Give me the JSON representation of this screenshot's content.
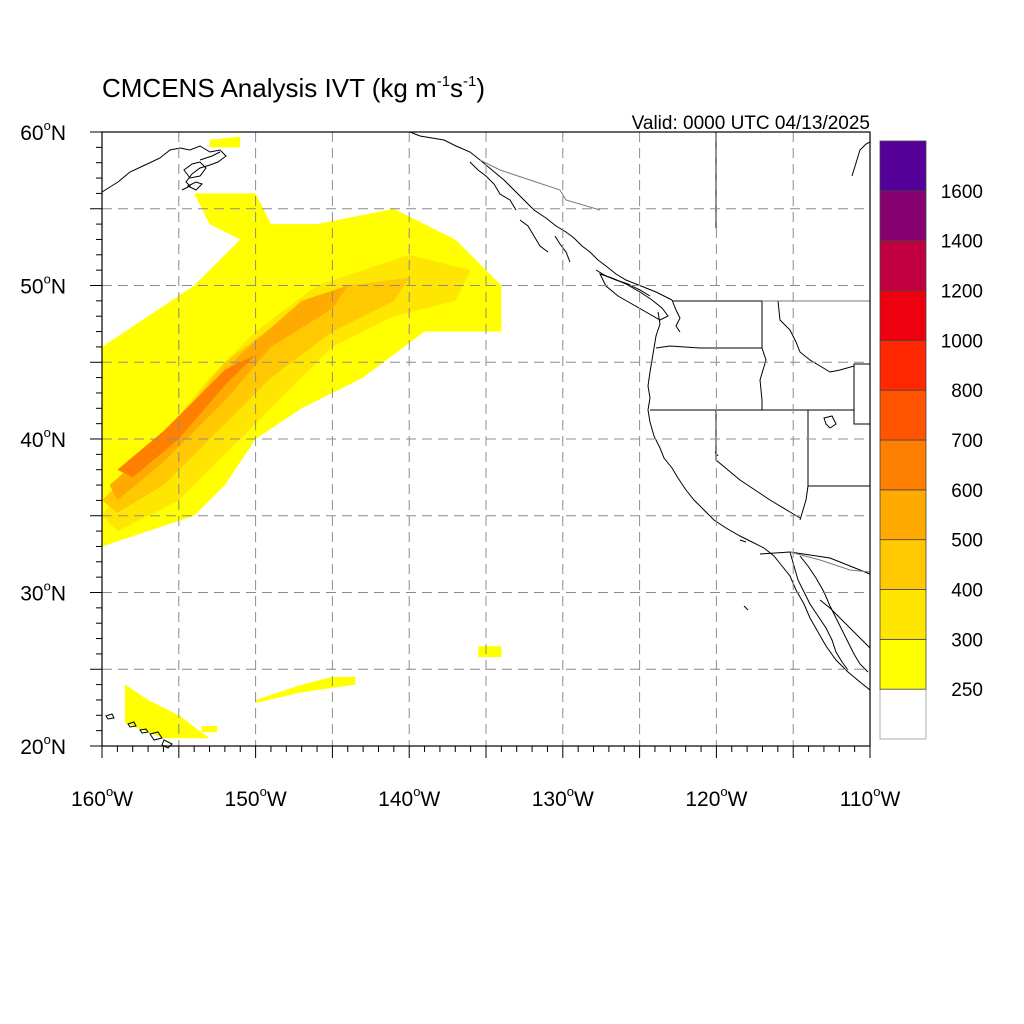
{
  "title": {
    "main": "CMCENS Analysis IVT (kg m",
    "sup1": "-1",
    "mid": "s",
    "sup2": "-1",
    "end": ")"
  },
  "valid_label": "Valid: 0000 UTC 04/13/2025",
  "map": {
    "projection": "cylindrical equidistant",
    "lon_range": [
      -160,
      -110
    ],
    "lat_range": [
      20,
      60
    ],
    "grid": "dashed every 5 degrees",
    "lat_ticks": [
      {
        "value": 60,
        "num": "60",
        "deg": "o",
        "hem": "N"
      },
      {
        "value": 50,
        "num": "50",
        "deg": "o",
        "hem": "N"
      },
      {
        "value": 40,
        "num": "40",
        "deg": "o",
        "hem": "N"
      },
      {
        "value": 30,
        "num": "30",
        "deg": "o",
        "hem": "N"
      },
      {
        "value": 20,
        "num": "20",
        "deg": "o",
        "hem": "N"
      }
    ],
    "lon_ticks": [
      {
        "value": -160,
        "num": "160",
        "deg": "o",
        "hem": "W"
      },
      {
        "value": -150,
        "num": "150",
        "deg": "o",
        "hem": "W"
      },
      {
        "value": -140,
        "num": "140",
        "deg": "o",
        "hem": "W"
      },
      {
        "value": -130,
        "num": "130",
        "deg": "o",
        "hem": "W"
      },
      {
        "value": -120,
        "num": "120",
        "deg": "o",
        "hem": "W"
      },
      {
        "value": -110,
        "num": "110",
        "deg": "o",
        "hem": "W"
      }
    ]
  },
  "colorbar": {
    "colors": [
      "#ffffff",
      "#ffff00",
      "#ffe600",
      "#ffc800",
      "#ffaa00",
      "#ff8000",
      "#ff5500",
      "#ff2800",
      "#ee0010",
      "#c00040",
      "#870070",
      "#550099"
    ],
    "labels": [
      "250",
      "300",
      "400",
      "500",
      "600",
      "700",
      "800",
      "1000",
      "1200",
      "1400",
      "1600"
    ]
  },
  "ivt_regions": [
    {
      "level": 1,
      "points": [
        [
          -160,
          39
        ],
        [
          -160,
          46
        ],
        [
          -157,
          48
        ],
        [
          -154,
          50
        ],
        [
          -152,
          52
        ],
        [
          -150,
          54
        ],
        [
          -146,
          54
        ],
        [
          -141,
          55
        ],
        [
          -137,
          53
        ],
        [
          -134,
          50
        ],
        [
          -134,
          47
        ],
        [
          -139,
          47
        ],
        [
          -143,
          44
        ],
        [
          -147,
          42
        ],
        [
          -150,
          40
        ],
        [
          -152,
          37
        ],
        [
          -154,
          35
        ],
        [
          -157,
          34
        ],
        [
          -160,
          33
        ]
      ]
    },
    {
      "level": 1,
      "points": [
        [
          -154,
          56
        ],
        [
          -150,
          56
        ],
        [
          -149,
          54
        ],
        [
          -151,
          53
        ],
        [
          -153,
          54
        ]
      ]
    },
    {
      "level": 1,
      "points": [
        [
          -153,
          59.5
        ],
        [
          -151,
          59.7
        ],
        [
          -151,
          59
        ],
        [
          -153,
          59
        ]
      ]
    },
    {
      "level": 1,
      "points": [
        [
          -158.5,
          24
        ],
        [
          -157,
          23
        ],
        [
          -155,
          22
        ],
        [
          -153,
          20.5
        ],
        [
          -156,
          20.5
        ],
        [
          -158.5,
          21.5
        ]
      ]
    },
    {
      "level": 1,
      "points": [
        [
          -153.5,
          21.3
        ],
        [
          -152.5,
          21.3
        ],
        [
          -152.5,
          20.9
        ],
        [
          -153.5,
          20.9
        ]
      ]
    },
    {
      "level": 1,
      "points": [
        [
          -150,
          23
        ],
        [
          -147,
          24
        ],
        [
          -145,
          24.5
        ],
        [
          -143.5,
          24.5
        ],
        [
          -143.5,
          24
        ],
        [
          -147,
          23.5
        ],
        [
          -150,
          22.8
        ]
      ]
    },
    {
      "level": 1,
      "points": [
        [
          -135.5,
          26.5
        ],
        [
          -134,
          26.5
        ],
        [
          -134,
          25.8
        ],
        [
          -135.5,
          25.8
        ]
      ]
    },
    {
      "level": 2,
      "points": [
        [
          -160,
          35
        ],
        [
          -157,
          39
        ],
        [
          -153,
          44
        ],
        [
          -150,
          47
        ],
        [
          -146,
          50
        ],
        [
          -140,
          52
        ],
        [
          -136,
          51
        ],
        [
          -137,
          49
        ],
        [
          -141,
          48
        ],
        [
          -145,
          46
        ],
        [
          -148,
          43
        ],
        [
          -151,
          40
        ],
        [
          -155,
          36
        ],
        [
          -159,
          34
        ]
      ]
    },
    {
      "level": 3,
      "points": [
        [
          -160,
          36
        ],
        [
          -156,
          40
        ],
        [
          -152,
          45
        ],
        [
          -148,
          48
        ],
        [
          -144,
          50
        ],
        [
          -140,
          50.5
        ],
        [
          -141,
          49
        ],
        [
          -145,
          47
        ],
        [
          -149,
          44
        ],
        [
          -152,
          41
        ],
        [
          -156,
          37
        ],
        [
          -159,
          35.2
        ]
      ]
    },
    {
      "level": 4,
      "points": [
        [
          -159.5,
          37
        ],
        [
          -155,
          41
        ],
        [
          -151,
          45.5
        ],
        [
          -147,
          49
        ],
        [
          -144,
          50
        ],
        [
          -145,
          48.5
        ],
        [
          -149,
          46
        ],
        [
          -152,
          42.5
        ],
        [
          -156,
          38.5
        ],
        [
          -159,
          36
        ]
      ]
    },
    {
      "level": 5,
      "points": [
        [
          -159,
          38
        ],
        [
          -156,
          40.5
        ],
        [
          -152,
          44.5
        ],
        [
          -150,
          45.5
        ],
        [
          -152,
          43.5
        ],
        [
          -155,
          40
        ],
        [
          -158,
          37.5
        ]
      ]
    }
  ]
}
